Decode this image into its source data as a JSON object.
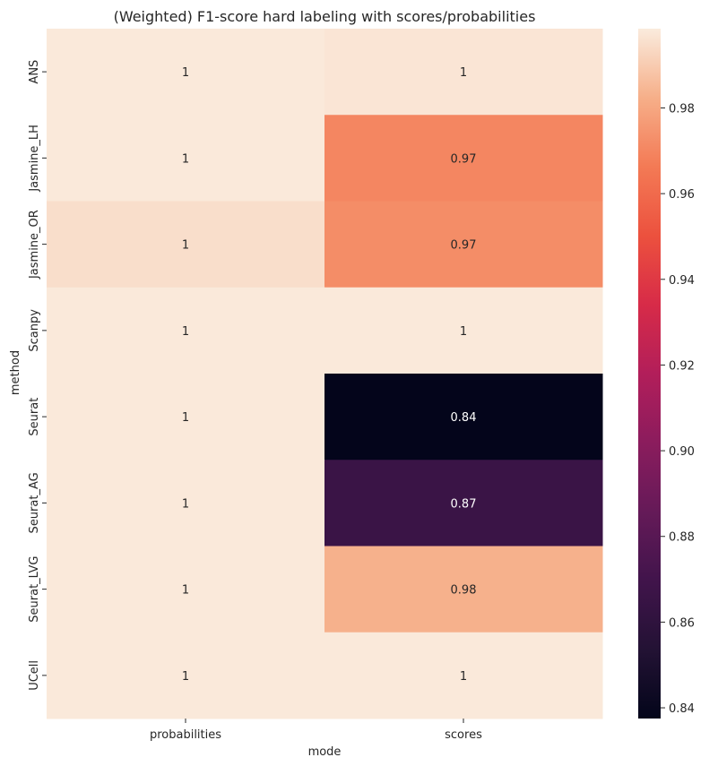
{
  "chart_data": {
    "type": "heatmap",
    "title": "(Weighted) F1-score hard labeling with scores/probabilities",
    "xlabel": "mode",
    "ylabel": "method",
    "x_categories": [
      "probabilities",
      "scores"
    ],
    "y_categories": [
      "ANS",
      "Jasmine_LH",
      "Jasmine_OR",
      "Scanpy",
      "Seurat",
      "Seurat_AG",
      "Seurat_LVG",
      "UCell"
    ],
    "values": [
      [
        0.998,
        0.997
      ],
      [
        0.998,
        0.97
      ],
      [
        0.995,
        0.972
      ],
      [
        0.998,
        0.998
      ],
      [
        0.998,
        0.838
      ],
      [
        0.998,
        0.866
      ],
      [
        0.998,
        0.983
      ],
      [
        0.998,
        0.998
      ]
    ],
    "annotations": [
      [
        "1",
        "1"
      ],
      [
        "1",
        "0.97"
      ],
      [
        "1",
        "0.97"
      ],
      [
        "1",
        "1"
      ],
      [
        "1",
        "0.84"
      ],
      [
        "1",
        "0.87"
      ],
      [
        "1",
        "0.98"
      ],
      [
        "1",
        "1"
      ]
    ],
    "colorbar": {
      "vmin": 0.8375,
      "vmax": 0.9985,
      "ticks": [
        "0.84",
        "0.86",
        "0.88",
        "0.90",
        "0.92",
        "0.94",
        "0.96",
        "0.98"
      ],
      "colormap": "rocket"
    },
    "grid": false
  }
}
